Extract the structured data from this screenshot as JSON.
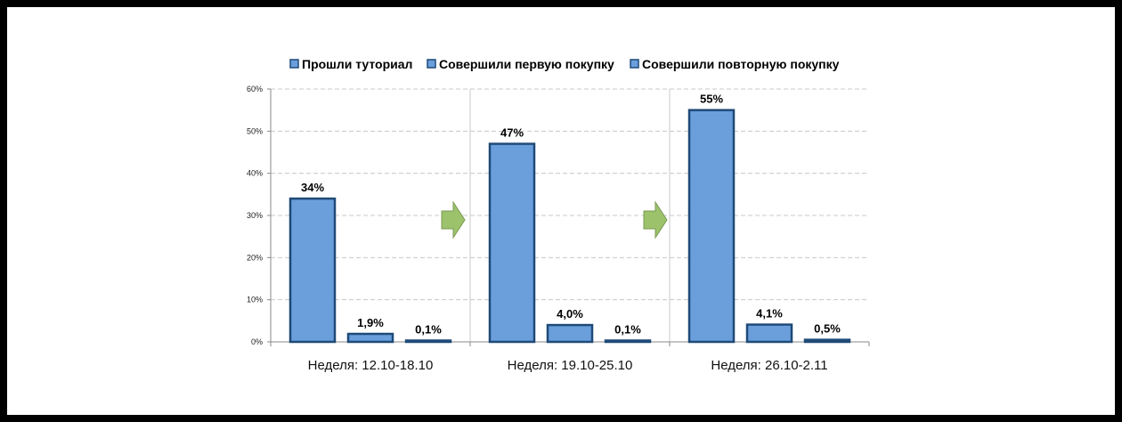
{
  "colors": {
    "bar_fill": "#6a9fdc",
    "bar_stroke": "#1f4a78",
    "grid": "#c8c8c8",
    "axis": "#8a8a8a",
    "arrow_fill": "#9cc26c",
    "arrow_stroke": "#7a9a50"
  },
  "icons": {
    "arrow": "green-right-arrow-icon",
    "legend_marker": "blue-square-icon"
  },
  "chart_data": {
    "type": "bar",
    "title": "",
    "xlabel": "",
    "ylabel": "",
    "ylim": [
      0,
      60
    ],
    "yticks": [
      "0%",
      "10%",
      "20%",
      "30%",
      "40%",
      "50%",
      "60%"
    ],
    "yticks_values": [
      0,
      10,
      20,
      30,
      40,
      50,
      60
    ],
    "grid": true,
    "legend_position": "top",
    "categories": [
      "Неделя: 12.10-18.10",
      "Неделя: 19.10-25.10",
      "Неделя: 26.10-2.11"
    ],
    "series": [
      {
        "name": "Прошли туториал",
        "values": [
          34,
          47,
          55
        ],
        "labels": [
          "34%",
          "47%",
          "55%"
        ]
      },
      {
        "name": "Совершили первую покупку",
        "values": [
          1.9,
          4.0,
          4.1
        ],
        "labels": [
          "1,9%",
          "4,0%",
          "4,1%"
        ]
      },
      {
        "name": "Совершили повторную покупку",
        "values": [
          0.1,
          0.1,
          0.5
        ],
        "labels": [
          "0,1%",
          "0,1%",
          "0,5%"
        ]
      }
    ]
  }
}
